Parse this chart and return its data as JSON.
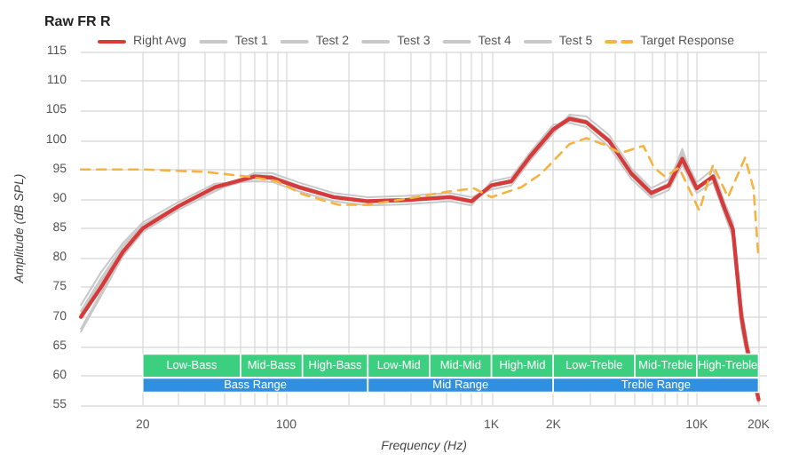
{
  "chart_data": {
    "type": "line",
    "title": "Raw FR R",
    "xlabel": "Frequency (Hz)",
    "ylabel": "Amplitude (dB SPL)",
    "log": "x",
    "grid": true,
    "legend": "top",
    "marker": "none",
    "xlim": [
      10,
      22000
    ],
    "ylim": [
      55,
      115
    ],
    "xticks": [
      {
        "value": 20,
        "label": "20"
      },
      {
        "value": 30,
        "label": null
      },
      {
        "value": 40,
        "label": null
      },
      {
        "value": 50,
        "label": null
      },
      {
        "value": 60,
        "label": null
      },
      {
        "value": 70,
        "label": null
      },
      {
        "value": 80,
        "label": null
      },
      {
        "value": 90,
        "label": null
      },
      {
        "value": 100,
        "label": "100"
      },
      {
        "value": 200,
        "label": null
      },
      {
        "value": 300,
        "label": null
      },
      {
        "value": 400,
        "label": null
      },
      {
        "value": 500,
        "label": null
      },
      {
        "value": 600,
        "label": null
      },
      {
        "value": 700,
        "label": null
      },
      {
        "value": 800,
        "label": null
      },
      {
        "value": 900,
        "label": null
      },
      {
        "value": 1000,
        "label": "1K"
      },
      {
        "value": 2000,
        "label": "2K"
      },
      {
        "value": 3000,
        "label": null
      },
      {
        "value": 4000,
        "label": null
      },
      {
        "value": 5000,
        "label": null
      },
      {
        "value": 6000,
        "label": null
      },
      {
        "value": 7000,
        "label": null
      },
      {
        "value": 8000,
        "label": null
      },
      {
        "value": 9000,
        "label": null
      },
      {
        "value": 10000,
        "label": "10K"
      },
      {
        "value": 20000,
        "label": "20K"
      }
    ],
    "yticks": [
      55,
      60,
      65,
      70,
      75,
      80,
      85,
      90,
      95,
      100,
      105,
      110,
      115
    ],
    "series": [
      {
        "name": "Right Avg",
        "color": "#d63b3b",
        "line_style": "solid",
        "x": [
          10,
          12.5,
          16,
          20,
          30,
          45,
          70,
          85,
          115,
          170,
          250,
          380,
          630,
          800,
          1000,
          1250,
          1550,
          2000,
          2400,
          2900,
          3750,
          4800,
          6000,
          7300,
          8500,
          10000,
          12000,
          13700,
          15000,
          16500,
          17500,
          20000
        ],
        "values": [
          70,
          75,
          81,
          85,
          88.8,
          92,
          93.8,
          93.6,
          92,
          90.3,
          89.6,
          89.8,
          90.3,
          89.6,
          92.3,
          93,
          97.3,
          101.8,
          103.6,
          103,
          99.8,
          94.3,
          91,
          92.3,
          96.8,
          91.8,
          93.8,
          88.3,
          84.8,
          70,
          65,
          56
        ]
      },
      {
        "name": "Test 1",
        "color": "#c8c8c8",
        "line_style": "solid",
        "x": [
          10,
          12.5,
          16,
          20,
          30,
          45,
          70,
          85,
          115,
          170,
          250,
          380,
          630,
          800,
          1000,
          1250,
          1550,
          2000,
          2400,
          2900,
          3750,
          4800,
          6000,
          7300,
          8500,
          10000,
          12000,
          13700,
          15000,
          16500,
          17500,
          20000
        ],
        "values": [
          68,
          74,
          81,
          85,
          88.8,
          92,
          94,
          93.8,
          92.2,
          90.4,
          89.6,
          89.8,
          90.3,
          89.5,
          92.3,
          93,
          97.5,
          102,
          104,
          103.3,
          100,
          94,
          90.5,
          92.5,
          98.5,
          91.5,
          94,
          88,
          85,
          70,
          64,
          56
        ]
      },
      {
        "name": "Test 2",
        "color": "#c8c8c8",
        "line_style": "solid",
        "x": [
          10,
          12.5,
          16,
          20,
          30,
          45,
          70,
          85,
          115,
          170,
          250,
          380,
          630,
          800,
          1000,
          1250,
          1550,
          2000,
          2400,
          2900,
          3750,
          4800,
          6000,
          7300,
          8500,
          10000,
          12000,
          13700,
          15000,
          16500,
          17500,
          20000
        ],
        "values": [
          70.5,
          76,
          81.5,
          85.3,
          88.6,
          91.6,
          93.5,
          93.4,
          91.8,
          90.2,
          89.5,
          89.7,
          90.2,
          89.6,
          92.2,
          92.8,
          97,
          101.5,
          103.3,
          102.8,
          99.5,
          94.8,
          91.3,
          92,
          96,
          92,
          93.5,
          88.6,
          84,
          69,
          65,
          57
        ]
      },
      {
        "name": "Test 3",
        "color": "#c8c8c8",
        "line_style": "solid",
        "x": [
          10,
          12.5,
          16,
          20,
          30,
          45,
          70,
          85,
          115,
          170,
          250,
          380,
          630,
          800,
          1000,
          1250,
          1550,
          2000,
          2400,
          2900,
          3750,
          4800,
          6000,
          7300,
          8500,
          10000,
          12000,
          13700,
          15000,
          16500,
          17500,
          20000
        ],
        "values": [
          67.5,
          73.5,
          80.3,
          84.4,
          88.2,
          91.3,
          94.4,
          94.4,
          92.8,
          91,
          90.3,
          90.5,
          91,
          90.3,
          91.6,
          92.3,
          96.6,
          101.1,
          104.3,
          104,
          100.8,
          95.2,
          91.8,
          93.3,
          97.8,
          92.8,
          95,
          89.3,
          86,
          72,
          66,
          58
        ]
      },
      {
        "name": "Test 4",
        "color": "#c8c8c8",
        "line_style": "solid",
        "x": [
          10,
          12.5,
          16,
          20,
          30,
          45,
          70,
          85,
          115,
          170,
          250,
          380,
          630,
          800,
          1000,
          1250,
          1550,
          2000,
          2400,
          2900,
          3750,
          4800,
          6000,
          7300,
          8500,
          10000,
          12000,
          13700,
          15000,
          16500,
          17500,
          20000
        ],
        "values": [
          71,
          76.5,
          82,
          85.6,
          89,
          92.1,
          94.1,
          93.9,
          92.3,
          90.5,
          89.8,
          90,
          90.5,
          89.8,
          92.5,
          93.2,
          97.6,
          102.1,
          103.9,
          103.3,
          100.2,
          94.5,
          91.2,
          92.6,
          97.5,
          92,
          94,
          88.8,
          85.5,
          72,
          66,
          57
        ]
      },
      {
        "name": "Test 5",
        "color": "#c8c8c8",
        "line_style": "solid",
        "x": [
          10,
          12.5,
          16,
          20,
          30,
          45,
          70,
          85,
          115,
          170,
          250,
          380,
          630,
          800,
          1000,
          1250,
          1550,
          2000,
          2400,
          2900,
          3750,
          4800,
          6000,
          7300,
          8500,
          10000,
          12000,
          13700,
          15000,
          16500,
          17500,
          20000
        ],
        "values": [
          72,
          77.5,
          82.5,
          86,
          89.5,
          92.6,
          93,
          92.9,
          91.3,
          89.6,
          88.9,
          89.1,
          89.6,
          88.9,
          93,
          93.7,
          98,
          102.6,
          102.9,
          102.2,
          98.8,
          93.4,
          90.2,
          91.5,
          95.8,
          91,
          92.8,
          87.3,
          83.5,
          68,
          63.5,
          55.5
        ]
      },
      {
        "name": "Target Response",
        "color": "#f5b342",
        "line_style": "dashed",
        "x": [
          10,
          20,
          40,
          65,
          90,
          120,
          180,
          250,
          380,
          630,
          820,
          1000,
          1400,
          1750,
          2400,
          2900,
          3500,
          4250,
          5500,
          6200,
          7000,
          8200,
          10300,
          12000,
          14200,
          17200,
          18900,
          20000
        ],
        "values": [
          95,
          95,
          94.6,
          93.8,
          93,
          90.8,
          89,
          89,
          90,
          91.3,
          91.8,
          90.3,
          92,
          94.3,
          99.3,
          100.3,
          99.3,
          97.8,
          99,
          95.3,
          93.8,
          95.3,
          88,
          95.8,
          90.3,
          97,
          91.8,
          80
        ]
      }
    ],
    "bands": [
      {
        "axis": "x",
        "from": 20,
        "to": 60,
        "label": "Low-Bass",
        "color": "#3ccf7f"
      },
      {
        "axis": "x",
        "from": 60,
        "to": 120,
        "label": "Mid-Bass",
        "color": "#3ccf7f"
      },
      {
        "axis": "x",
        "from": 120,
        "to": 250,
        "label": "High-Bass",
        "color": "#3ccf7f"
      },
      {
        "axis": "x",
        "from": 250,
        "to": 500,
        "label": "Low-Mid",
        "color": "#3ccf7f"
      },
      {
        "axis": "x",
        "from": 500,
        "to": 1000,
        "label": "Mid-Mid",
        "color": "#3ccf7f"
      },
      {
        "axis": "x",
        "from": 1000,
        "to": 2000,
        "label": "High-Mid",
        "color": "#3ccf7f"
      },
      {
        "axis": "x",
        "from": 2000,
        "to": 5000,
        "label": "Low-Treble",
        "color": "#3ccf7f"
      },
      {
        "axis": "x",
        "from": 5000,
        "to": 10000,
        "label": "Mid-Treble",
        "color": "#3ccf7f"
      },
      {
        "axis": "x",
        "from": 10000,
        "to": 20000,
        "label": "High-Treble",
        "color": "#3ccf7f"
      },
      {
        "axis": "x",
        "from": 20,
        "to": 250,
        "label": "Bass Range",
        "color": "#2f8fe0"
      },
      {
        "axis": "x",
        "from": 250,
        "to": 2000,
        "label": "Mid Range",
        "color": "#2f8fe0"
      },
      {
        "axis": "x",
        "from": 2000,
        "to": 20000,
        "label": "Treble Range",
        "color": "#2f8fe0"
      }
    ]
  }
}
